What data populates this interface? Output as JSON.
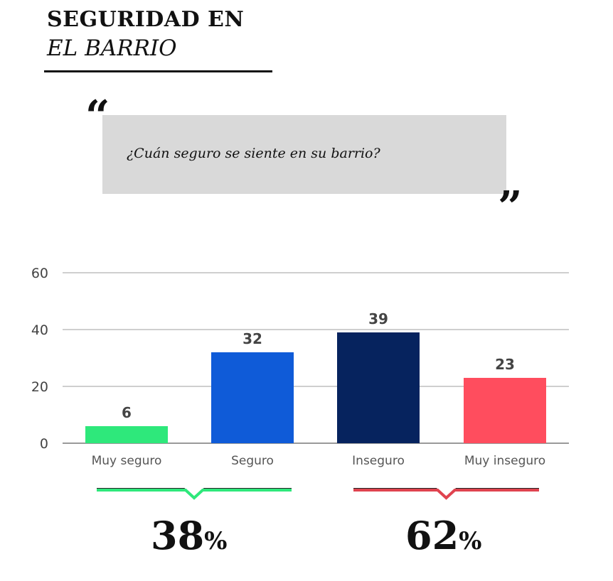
{
  "header": {
    "title_line1": "SEGURIDAD EN",
    "title_line2": "EL BARRIO"
  },
  "question": {
    "open_quote": "“",
    "text": "¿Cuán seguro se siente en su barrio?",
    "close_quote": "”"
  },
  "chart_data": {
    "type": "bar",
    "categories": [
      "Muy seguro",
      "Seguro",
      "Inseguro",
      "Muy inseguro"
    ],
    "values": [
      6,
      32,
      39,
      23
    ],
    "colors": [
      "#2ee87b",
      "#0f5bd8",
      "#06235e",
      "#ff4d5e"
    ],
    "ylim": [
      0,
      60
    ],
    "yticks": [
      0,
      20,
      40,
      60
    ],
    "grid": true,
    "data_labels": true
  },
  "summary": {
    "left": {
      "number": "38",
      "symbol": "%",
      "color": "#2ee87b"
    },
    "right": {
      "number": "62",
      "symbol": "%",
      "color": "#e0434f"
    }
  }
}
